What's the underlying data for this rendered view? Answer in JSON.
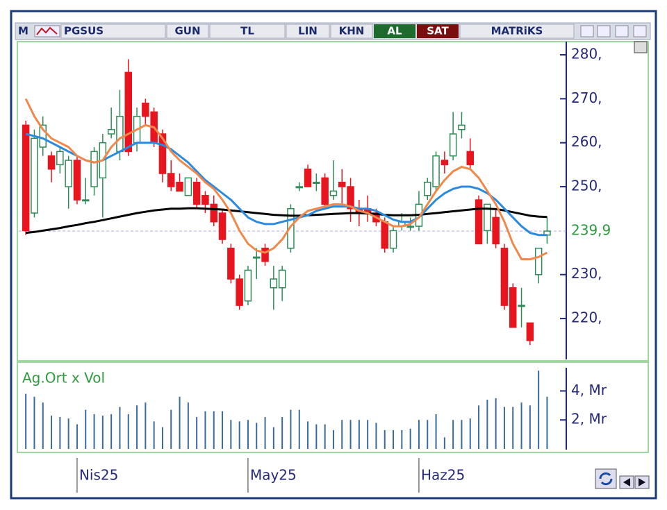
{
  "toolbar": {
    "logo": "M",
    "symbol": "PGSUS",
    "period": "GUN",
    "currency": "TL",
    "scale": "LIN",
    "mode": "KHN",
    "buy": "AL",
    "sell": "SAT",
    "brand": "MATRiKS"
  },
  "chart_data": {
    "type": "candlestick",
    "categories": [
      null,
      null,
      null,
      null,
      null,
      null,
      "Nis25",
      null,
      null,
      null,
      null,
      null,
      null,
      null,
      null,
      null,
      null,
      null,
      null,
      null,
      null,
      null,
      null,
      null,
      null,
      null,
      "May25",
      null,
      null,
      null,
      null,
      null,
      null,
      null,
      null,
      null,
      null,
      null,
      null,
      null,
      null,
      null,
      null,
      null,
      null,
      null,
      "Haz25",
      null,
      null,
      null,
      null,
      null,
      null,
      null,
      null,
      null,
      null,
      null,
      null,
      null,
      null,
      null
    ],
    "open": [
      264,
      244,
      259,
      257,
      255,
      250,
      256,
      247,
      250,
      252,
      262,
      258,
      276,
      260,
      269,
      267,
      262,
      253,
      251,
      248,
      251,
      248,
      246,
      244,
      236,
      229,
      224,
      234,
      236,
      227,
      227,
      236,
      250,
      254,
      251,
      252,
      248,
      251,
      250,
      245,
      245,
      244,
      242,
      236,
      241,
      241,
      241,
      248,
      250,
      256,
      257,
      263,
      258,
      247,
      240,
      243,
      236,
      227,
      223,
      219,
      230,
      239
    ],
    "high": [
      265,
      263,
      266,
      258,
      259,
      257,
      257,
      252,
      259,
      262,
      268,
      272,
      279,
      268,
      270,
      268,
      263,
      256,
      253,
      252,
      252,
      249,
      248,
      245,
      237,
      230,
      232,
      236,
      237,
      232,
      232,
      246,
      251,
      255,
      253,
      253,
      256,
      254,
      252,
      247,
      248,
      245,
      243,
      241,
      244,
      243,
      249,
      252,
      258,
      258,
      267,
      267,
      261,
      248,
      246,
      245,
      237,
      228,
      227,
      219,
      236,
      243
    ],
    "low": [
      239,
      243,
      257,
      251,
      253,
      245,
      246,
      246,
      248,
      243,
      261,
      256,
      257,
      258,
      264,
      259,
      251,
      249,
      249,
      248,
      245,
      244,
      241,
      237,
      228,
      222,
      223,
      229,
      232,
      222,
      224,
      235,
      249,
      250,
      249,
      245,
      247,
      246,
      242,
      241,
      242,
      241,
      235,
      235,
      240,
      240,
      240,
      247,
      249,
      253,
      256,
      261,
      254,
      237,
      237,
      236,
      222,
      218,
      218,
      214,
      228,
      237
    ],
    "close": [
      240,
      261,
      264,
      254,
      258,
      256,
      247,
      247,
      258,
      260,
      263,
      266,
      258,
      266,
      266,
      260,
      253,
      250,
      249,
      252,
      246,
      246,
      242,
      238,
      229,
      223,
      231,
      234,
      233,
      229,
      231,
      245,
      250,
      250,
      251,
      246,
      249,
      250,
      245,
      244,
      244,
      242,
      236,
      240,
      242,
      241,
      246,
      251,
      257,
      255,
      262,
      264,
      255,
      237,
      246,
      237,
      223,
      218,
      223,
      215,
      236,
      239.9
    ],
    "up_color": "#2e8b57",
    "down_color": "#e8141e",
    "lines": [
      {
        "color": "#000000",
        "values": [
          239.5,
          239.7,
          240,
          240.3,
          240.6,
          241,
          241.3,
          241.7,
          242,
          242.4,
          242.8,
          243.2,
          243.6,
          244,
          244.3,
          244.6,
          244.8,
          245,
          245,
          245.1,
          245.1,
          245,
          244.9,
          244.8,
          244.6,
          244.4,
          244.2,
          244,
          243.8,
          243.6,
          243.5,
          243.4,
          243.4,
          243.5,
          243.6,
          243.7,
          243.8,
          243.9,
          244,
          244,
          243.9,
          243.8,
          243.6,
          243.5,
          243.5,
          243.5,
          243.6,
          243.8,
          244,
          244.2,
          244.4,
          244.6,
          244.8,
          245,
          245,
          244.9,
          244.6,
          244.2,
          243.8,
          243.4,
          243.2,
          243.1
        ]
      },
      {
        "color": "#2a8ae0",
        "values": [
          262,
          261.5,
          261,
          260,
          259,
          258,
          257,
          256,
          255.5,
          256,
          257,
          258,
          259,
          260,
          260,
          260,
          259.5,
          258.5,
          257,
          255.5,
          253.5,
          251.5,
          250,
          248.5,
          247,
          245,
          243,
          242,
          241.5,
          241.5,
          242,
          242.5,
          243,
          243.5,
          244.5,
          245,
          245.5,
          245.5,
          245.5,
          245,
          245,
          244.5,
          243.5,
          242.5,
          242,
          242,
          243,
          245,
          247,
          248.5,
          249.5,
          250,
          250,
          249.5,
          248.5,
          247,
          245,
          243,
          241,
          239.5,
          239,
          239
        ]
      },
      {
        "color": "#f0884a",
        "values": [
          270,
          266,
          263,
          261,
          260,
          259,
          257,
          256,
          255.5,
          256,
          259,
          261,
          262,
          263,
          264,
          263.5,
          261,
          258,
          256,
          254.5,
          253,
          251,
          249.5,
          247,
          244,
          240,
          237,
          235.5,
          235,
          236,
          238,
          241,
          243,
          244.5,
          245,
          245.5,
          246,
          246,
          245.5,
          244.5,
          244,
          243,
          242,
          241,
          241,
          241.5,
          243,
          246,
          249,
          251.5,
          253.5,
          254.5,
          254,
          252,
          249,
          246,
          242,
          237,
          233.5,
          233.5,
          234,
          235
        ]
      }
    ],
    "ylim": [
      210.7,
      283
    ],
    "yticks": [
      {
        "value": 220,
        "label": "220,"
      },
      {
        "value": 230,
        "label": "230,"
      },
      {
        "value": 250,
        "label": "250,"
      },
      {
        "value": 260,
        "label": "260,"
      },
      {
        "value": 270,
        "label": "270,"
      },
      {
        "value": 280,
        "label": "280,"
      }
    ],
    "last_price": {
      "value": 239.9,
      "label": "239,9"
    },
    "volume": {
      "title": "Ag.Ort x Vol",
      "color": "#3a6a9a",
      "values": [
        3.8,
        3.6,
        3.2,
        2.3,
        2.2,
        2.1,
        1.7,
        2.7,
        2.4,
        2.3,
        2.4,
        2.9,
        2.4,
        3.0,
        3.2,
        1.9,
        1.5,
        2.7,
        3.6,
        3.2,
        2.2,
        2.6,
        2.6,
        2.6,
        2.0,
        1.9,
        2.0,
        1.8,
        2.2,
        1.5,
        2.2,
        2.7,
        2.7,
        1.9,
        1.7,
        1.7,
        1.3,
        2.0,
        2.0,
        2.0,
        2.0,
        1.8,
        1.3,
        1.3,
        1.3,
        1.4,
        2.0,
        2.0,
        2.4,
        0.8,
        2.0,
        2.0,
        2.1,
        3.0,
        3.4,
        3.5,
        2.9,
        2.9,
        3.2,
        3.0,
        5.4,
        3.6
      ],
      "ylim": [
        0,
        5.6
      ],
      "yticks": [
        {
          "value": 2,
          "label": "2, Mr"
        },
        {
          "value": 4,
          "label": "4, Mr"
        }
      ]
    }
  }
}
